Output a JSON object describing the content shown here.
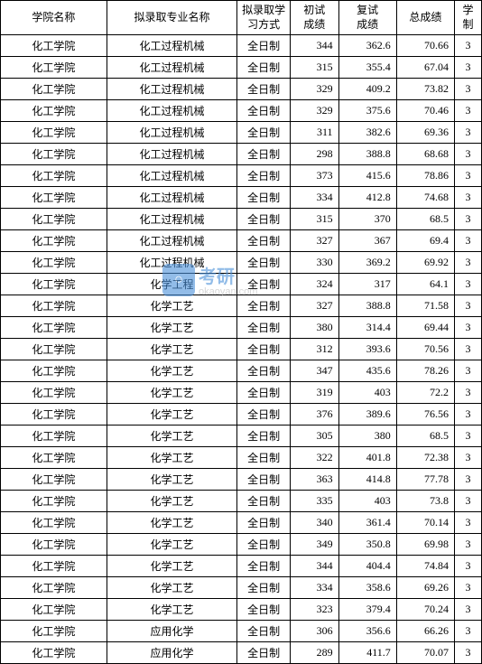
{
  "table": {
    "headers": [
      "学院名称",
      "拟录取专业名称",
      "拟录取学习方式",
      "初试成绩",
      "复试成绩",
      "总成绩",
      "学制"
    ],
    "col_classes": [
      "col-school",
      "col-major",
      "col-mode",
      "col-score1",
      "col-score2",
      "col-total",
      "col-years"
    ],
    "border_color": "#000000",
    "bg_color": "#ffffff",
    "text_color": "#000000",
    "font_size": 12,
    "rows": [
      [
        "化工学院",
        "化工过程机械",
        "全日制",
        "344",
        "362.6",
        "70.66",
        "3"
      ],
      [
        "化工学院",
        "化工过程机械",
        "全日制",
        "315",
        "355.4",
        "67.04",
        "3"
      ],
      [
        "化工学院",
        "化工过程机械",
        "全日制",
        "329",
        "409.2",
        "73.82",
        "3"
      ],
      [
        "化工学院",
        "化工过程机械",
        "全日制",
        "329",
        "375.6",
        "70.46",
        "3"
      ],
      [
        "化工学院",
        "化工过程机械",
        "全日制",
        "311",
        "382.6",
        "69.36",
        "3"
      ],
      [
        "化工学院",
        "化工过程机械",
        "全日制",
        "298",
        "388.8",
        "68.68",
        "3"
      ],
      [
        "化工学院",
        "化工过程机械",
        "全日制",
        "373",
        "415.6",
        "78.86",
        "3"
      ],
      [
        "化工学院",
        "化工过程机械",
        "全日制",
        "334",
        "412.8",
        "74.68",
        "3"
      ],
      [
        "化工学院",
        "化工过程机械",
        "全日制",
        "315",
        "370",
        "68.5",
        "3"
      ],
      [
        "化工学院",
        "化工过程机械",
        "全日制",
        "327",
        "367",
        "69.4",
        "3"
      ],
      [
        "化工学院",
        "化工过程机械",
        "全日制",
        "330",
        "369.2",
        "69.92",
        "3"
      ],
      [
        "化工学院",
        "化学工程",
        "全日制",
        "324",
        "317",
        "64.1",
        "3"
      ],
      [
        "化工学院",
        "化学工艺",
        "全日制",
        "327",
        "388.8",
        "71.58",
        "3"
      ],
      [
        "化工学院",
        "化学工艺",
        "全日制",
        "380",
        "314.4",
        "69.44",
        "3"
      ],
      [
        "化工学院",
        "化学工艺",
        "全日制",
        "312",
        "393.6",
        "70.56",
        "3"
      ],
      [
        "化工学院",
        "化学工艺",
        "全日制",
        "347",
        "435.6",
        "78.26",
        "3"
      ],
      [
        "化工学院",
        "化学工艺",
        "全日制",
        "319",
        "403",
        "72.2",
        "3"
      ],
      [
        "化工学院",
        "化学工艺",
        "全日制",
        "376",
        "389.6",
        "76.56",
        "3"
      ],
      [
        "化工学院",
        "化学工艺",
        "全日制",
        "305",
        "380",
        "68.5",
        "3"
      ],
      [
        "化工学院",
        "化学工艺",
        "全日制",
        "322",
        "401.8",
        "72.38",
        "3"
      ],
      [
        "化工学院",
        "化学工艺",
        "全日制",
        "363",
        "414.8",
        "77.78",
        "3"
      ],
      [
        "化工学院",
        "化学工艺",
        "全日制",
        "335",
        "403",
        "73.8",
        "3"
      ],
      [
        "化工学院",
        "化学工艺",
        "全日制",
        "340",
        "361.4",
        "70.14",
        "3"
      ],
      [
        "化工学院",
        "化学工艺",
        "全日制",
        "349",
        "350.8",
        "69.98",
        "3"
      ],
      [
        "化工学院",
        "化学工艺",
        "全日制",
        "344",
        "404.4",
        "74.84",
        "3"
      ],
      [
        "化工学院",
        "化学工艺",
        "全日制",
        "334",
        "358.6",
        "69.26",
        "3"
      ],
      [
        "化工学院",
        "化学工艺",
        "全日制",
        "323",
        "379.4",
        "70.24",
        "3"
      ],
      [
        "化工学院",
        "应用化学",
        "全日制",
        "306",
        "356.6",
        "66.26",
        "3"
      ],
      [
        "化工学院",
        "应用化学",
        "全日制",
        "289",
        "411.7",
        "70.07",
        "3"
      ]
    ]
  },
  "watermark": {
    "main": "考研",
    "sub": "okaoyan.com",
    "logo_char": "○",
    "logo_bg": "#4a90d9",
    "main_color": "#4a90d9",
    "sub_color": "#bbbbbb"
  }
}
